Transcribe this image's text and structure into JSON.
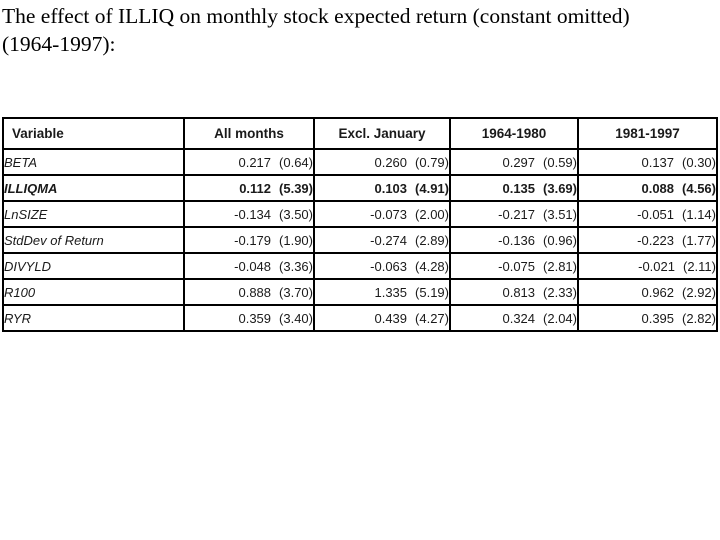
{
  "title_lines": [
    "The effect of ILLIQ on monthly stock expected return (constant omitted)",
    "(1964-1997):"
  ],
  "colors": {
    "background": "#ffffff",
    "text": "#000000",
    "table_border": "#000000"
  },
  "chart_data": {
    "type": "table",
    "title": "The effect of ILLIQ on monthly stock expected return (constant omitted) (1964-1997)",
    "note": "coefficient with t-statistic in parentheses; ILLIQMA row emphasized in bold",
    "columns": [
      "Variable",
      "All months",
      "Excl. January",
      "1964-1980",
      "1981-1997"
    ],
    "rows": [
      [
        "BETA",
        "0.217 (0.64)",
        "0.260 (0.79)",
        "0.297 (0.59)",
        "0.137 (0.30)"
      ],
      [
        "ILLIQMA",
        "0.112 (5.39)",
        "0.103 (4.91)",
        "0.135 (3.69)",
        "0.088 (4.56)"
      ],
      [
        "LnSIZE",
        "-0.134 (3.50)",
        "-0.073 (2.00)",
        "-0.217 (3.51)",
        "-0.051 (1.14)"
      ],
      [
        "StdDev of Return",
        "-0.179 (1.90)",
        "-0.274 (2.89)",
        "-0.136 (0.96)",
        "-0.223 (1.77)"
      ],
      [
        "DIVYLD",
        "-0.048 (3.36)",
        "-0.063 (4.28)",
        "-0.075 (2.81)",
        "-0.021 (2.11)"
      ],
      [
        "R100",
        "0.888 (3.70)",
        "1.335 (5.19)",
        "0.813 (2.33)",
        "0.962 (2.92)"
      ],
      [
        "RYR",
        "0.359 (3.40)",
        "0.439 (4.27)",
        "0.324 (2.04)",
        "0.395 (2.82)"
      ]
    ]
  },
  "table": {
    "headers": [
      "Variable",
      "All months",
      "Excl. January",
      "1964-1980",
      "1981-1997"
    ],
    "rows": [
      {
        "label": "BETA",
        "emphasis": false,
        "cells": [
          {
            "coef": "0.217",
            "t": "(0.64)"
          },
          {
            "coef": "0.260",
            "t": "(0.79)"
          },
          {
            "coef": "0.297",
            "t": "(0.59)"
          },
          {
            "coef": "0.137",
            "t": "(0.30)"
          }
        ]
      },
      {
        "label": "ILLIQMA",
        "emphasis": true,
        "cells": [
          {
            "coef": "0.112",
            "t": "(5.39)"
          },
          {
            "coef": "0.103",
            "t": "(4.91)"
          },
          {
            "coef": "0.135",
            "t": "(3.69)"
          },
          {
            "coef": "0.088",
            "t": "(4.56)"
          }
        ]
      },
      {
        "label": "LnSIZE",
        "emphasis": false,
        "cells": [
          {
            "coef": "-0.134",
            "t": "(3.50)"
          },
          {
            "coef": "-0.073",
            "t": "(2.00)"
          },
          {
            "coef": "-0.217",
            "t": "(3.51)"
          },
          {
            "coef": "-0.051",
            "t": "(1.14)"
          }
        ]
      },
      {
        "label": "StdDev of Return",
        "emphasis": false,
        "cells": [
          {
            "coef": "-0.179",
            "t": "(1.90)"
          },
          {
            "coef": "-0.274",
            "t": "(2.89)"
          },
          {
            "coef": "-0.136",
            "t": "(0.96)"
          },
          {
            "coef": "-0.223",
            "t": "(1.77)"
          }
        ]
      },
      {
        "label": "DIVYLD",
        "emphasis": false,
        "cells": [
          {
            "coef": "-0.048",
            "t": "(3.36)"
          },
          {
            "coef": "-0.063",
            "t": "(4.28)"
          },
          {
            "coef": "-0.075",
            "t": "(2.81)"
          },
          {
            "coef": "-0.021",
            "t": "(2.11)"
          }
        ]
      },
      {
        "label": "R100",
        "emphasis": false,
        "cells": [
          {
            "coef": "0.888",
            "t": "(3.70)"
          },
          {
            "coef": "1.335",
            "t": "(5.19)"
          },
          {
            "coef": "0.813",
            "t": "(2.33)"
          },
          {
            "coef": "0.962",
            "t": "(2.92)"
          }
        ]
      },
      {
        "label": "RYR",
        "emphasis": false,
        "cells": [
          {
            "coef": "0.359",
            "t": "(3.40)"
          },
          {
            "coef": "0.439",
            "t": "(4.27)"
          },
          {
            "coef": "0.324",
            "t": "(2.04)"
          },
          {
            "coef": "0.395",
            "t": "(2.82)"
          }
        ]
      }
    ]
  }
}
